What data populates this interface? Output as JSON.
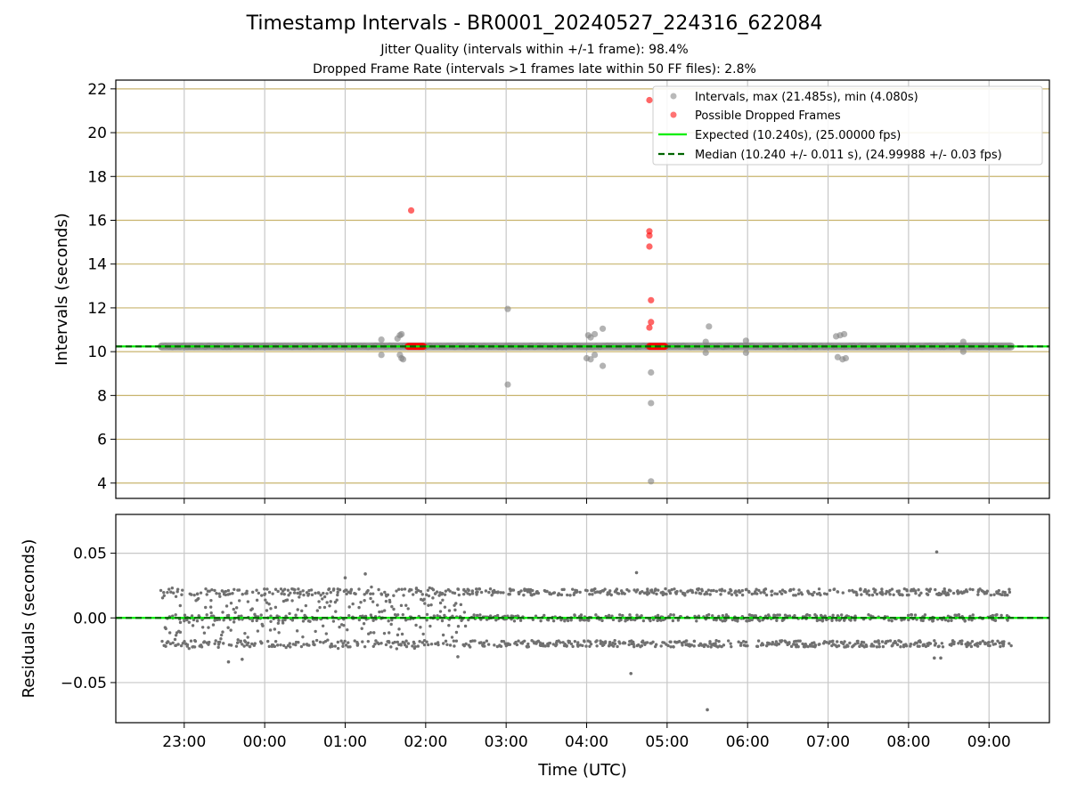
{
  "title": "Timestamp Intervals - BR0001_20240527_224316_622084",
  "subtitle_1": "Jitter Quality (intervals within +/-1 frame): 98.4%",
  "subtitle_2": "Dropped Frame Rate (intervals >1 frames late within 50 FF files): 2.8%",
  "colors": {
    "intervals": "#808080",
    "dropped": "#ff0000",
    "expected": "#00ee00",
    "median": "#006400",
    "horizontal_grid": "#c8b46e",
    "vertical_grid": "#c8c8c8"
  },
  "chart_data": [
    {
      "type": "scatter",
      "ylabel": "Intervals (seconds)",
      "ylim": [
        3.3,
        22.4
      ],
      "yticks": [
        4,
        6,
        8,
        10,
        12,
        14,
        16,
        18,
        20,
        22
      ],
      "ytick_labels": [
        "4",
        "6",
        "8",
        "10",
        "12",
        "14",
        "16",
        "18",
        "20",
        "22"
      ],
      "xlim_hours_from_22:00": [
        0.15,
        11.75
      ],
      "xticks_hours_from_22:00": [
        1,
        2,
        3,
        4,
        5,
        6,
        7,
        8,
        9,
        10,
        11
      ],
      "xtick_labels": [
        "23:00",
        "00:00",
        "01:00",
        "02:00",
        "03:00",
        "04:00",
        "05:00",
        "06:00",
        "07:00",
        "08:00",
        "09:00"
      ],
      "grid": "on",
      "legend_position": "top-right",
      "legend": [
        "Intervals, max (21.485s), min (4.080s)",
        "Possible Dropped Frames",
        "Expected (10.240s), (25.00000 fps)",
        "Median (10.240 +/- 0.011 s), (24.99988 +/- 0.03 fps)"
      ],
      "expected_interval": 10.24,
      "median_interval": 10.24,
      "baseline_span_hours": [
        0.72,
        11.27
      ],
      "series": [
        {
          "name": "Intervals",
          "points": [
            [
              3.45,
              10.55
            ],
            [
              3.45,
              9.85
            ],
            [
              3.65,
              10.6
            ],
            [
              3.68,
              10.75
            ],
            [
              3.7,
              10.8
            ],
            [
              3.68,
              9.85
            ],
            [
              3.7,
              9.7
            ],
            [
              3.72,
              9.65
            ],
            [
              5.02,
              11.95
            ],
            [
              5.02,
              8.5
            ],
            [
              6.02,
              10.75
            ],
            [
              6.05,
              10.65
            ],
            [
              6.1,
              10.8
            ],
            [
              6.0,
              9.7
            ],
            [
              6.05,
              9.65
            ],
            [
              6.1,
              9.85
            ],
            [
              6.2,
              11.05
            ],
            [
              6.2,
              9.35
            ],
            [
              6.8,
              9.05
            ],
            [
              6.8,
              7.65
            ],
            [
              6.8,
              4.08
            ],
            [
              7.48,
              10.45
            ],
            [
              7.52,
              11.15
            ],
            [
              7.48,
              9.95
            ],
            [
              7.98,
              10.5
            ],
            [
              7.98,
              9.95
            ],
            [
              9.1,
              10.7
            ],
            [
              9.15,
              10.75
            ],
            [
              9.2,
              10.8
            ],
            [
              9.12,
              9.75
            ],
            [
              9.18,
              9.65
            ],
            [
              9.22,
              9.7
            ],
            [
              10.68,
              10.45
            ],
            [
              10.68,
              10.0
            ]
          ]
        },
        {
          "name": "Possible Dropped Frames",
          "points": [
            [
              3.82,
              16.45
            ],
            [
              6.78,
              21.485
            ],
            [
              6.78,
              15.5
            ],
            [
              6.78,
              15.3
            ],
            [
              6.78,
              14.8
            ],
            [
              6.8,
              12.35
            ],
            [
              6.8,
              11.35
            ],
            [
              6.78,
              11.1
            ]
          ],
          "clusters_at_10.24": [
            [
              3.78,
              3.98
            ],
            [
              6.78,
              6.98
            ]
          ]
        }
      ]
    },
    {
      "type": "scatter",
      "ylabel": "Residuals (seconds)",
      "xlabel": "Time (UTC)",
      "ylim": [
        -0.081,
        0.08
      ],
      "yticks": [
        -0.05,
        0.0,
        0.05
      ],
      "ytick_labels": [
        "−0.05",
        "0.00",
        "0.05"
      ],
      "grid": "on",
      "baseline": 0.0,
      "bands": [
        0.02,
        0.0,
        -0.02
      ],
      "series": [
        {
          "name": "Residuals",
          "points": [
            [
              3.0,
              0.031
            ],
            [
              1.72,
              -0.032
            ],
            [
              1.55,
              -0.034
            ],
            [
              3.25,
              0.034
            ],
            [
              4.4,
              -0.03
            ],
            [
              6.62,
              0.035
            ],
            [
              6.55,
              -0.043
            ],
            [
              7.5,
              -0.071
            ],
            [
              10.35,
              0.051
            ],
            [
              10.32,
              -0.031
            ],
            [
              10.4,
              -0.031
            ]
          ]
        }
      ]
    }
  ]
}
